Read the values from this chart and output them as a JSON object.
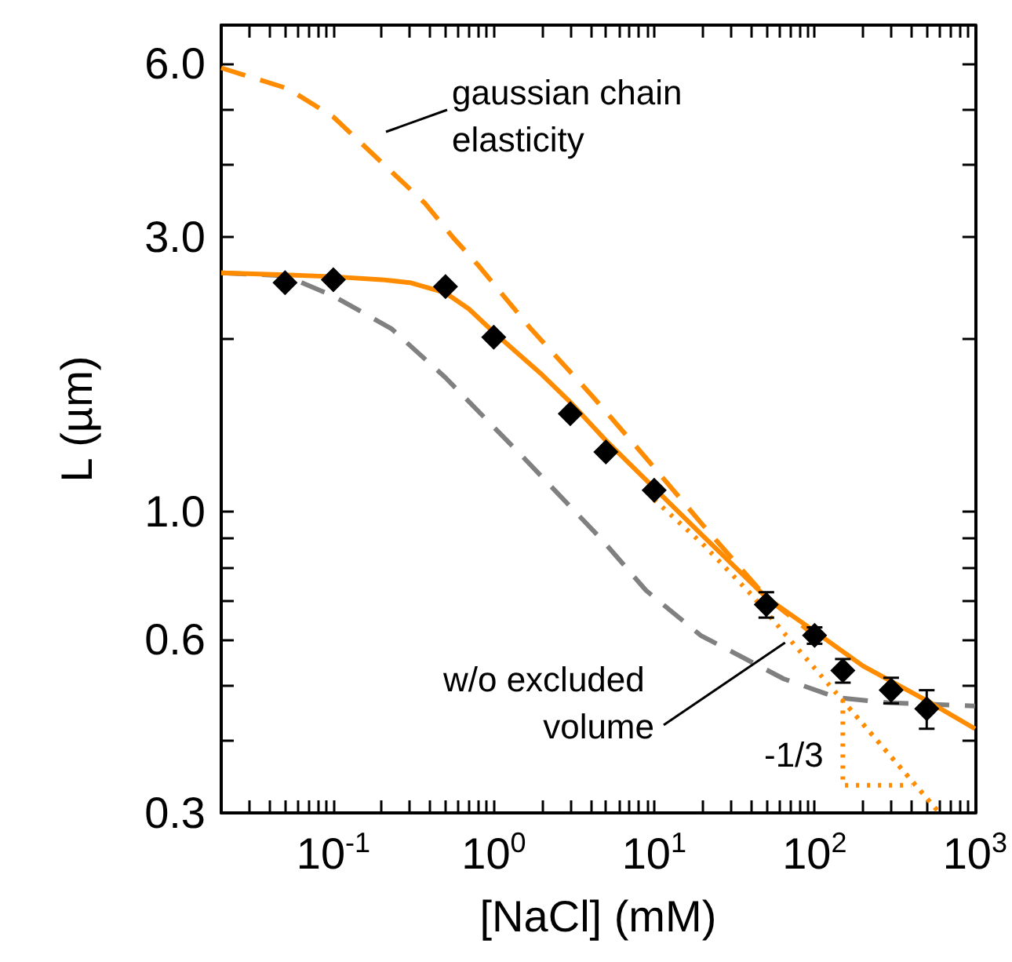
{
  "chart_data": {
    "type": "line",
    "xlabel": "[NaCl] (mM)",
    "ylabel": "L (µm)",
    "log": "xy",
    "xlim": [
      0.02,
      1000
    ],
    "ylim": [
      0.3,
      7
    ],
    "xticks": [
      {
        "value": 0.02,
        "label": null
      },
      {
        "value": 0.03,
        "label": null
      },
      {
        "value": 0.04,
        "label": null
      },
      {
        "value": 0.05,
        "label": null
      },
      {
        "value": 0.06,
        "label": null
      },
      {
        "value": 0.07,
        "label": null
      },
      {
        "value": 0.08,
        "label": null
      },
      {
        "value": 0.09,
        "label": null
      },
      {
        "value": 0.1,
        "label": "10$^{-1}$"
      },
      {
        "value": 0.2,
        "label": null
      },
      {
        "value": 0.3,
        "label": null
      },
      {
        "value": 0.4,
        "label": null
      },
      {
        "value": 0.5,
        "label": null
      },
      {
        "value": 0.6,
        "label": null
      },
      {
        "value": 0.7,
        "label": null
      },
      {
        "value": 0.8,
        "label": null
      },
      {
        "value": 0.9,
        "label": null
      },
      {
        "value": 1,
        "label": "10$^{0}$"
      },
      {
        "value": 2,
        "label": null
      },
      {
        "value": 3,
        "label": null
      },
      {
        "value": 4,
        "label": null
      },
      {
        "value": 5,
        "label": null
      },
      {
        "value": 6,
        "label": null
      },
      {
        "value": 7,
        "label": null
      },
      {
        "value": 8,
        "label": null
      },
      {
        "value": 9,
        "label": null
      },
      {
        "value": 10,
        "label": "10$^{1}$"
      },
      {
        "value": 20,
        "label": null
      },
      {
        "value": 30,
        "label": null
      },
      {
        "value": 40,
        "label": null
      },
      {
        "value": 50,
        "label": null
      },
      {
        "value": 60,
        "label": null
      },
      {
        "value": 70,
        "label": null
      },
      {
        "value": 80,
        "label": null
      },
      {
        "value": 90,
        "label": null
      },
      {
        "value": 100,
        "label": "10$^{2}$"
      },
      {
        "value": 200,
        "label": null
      },
      {
        "value": 300,
        "label": null
      },
      {
        "value": 400,
        "label": null
      },
      {
        "value": 500,
        "label": null
      },
      {
        "value": 600,
        "label": null
      },
      {
        "value": 700,
        "label": null
      },
      {
        "value": 800,
        "label": null
      },
      {
        "value": 900,
        "label": null
      },
      {
        "value": 1000,
        "label": "10$^{3}$"
      }
    ],
    "yticks": [
      0.3,
      {
        "value": 0.4,
        "label": null
      },
      {
        "value": 0.5,
        "label": null
      },
      0.6,
      {
        "value": 0.7,
        "label": null
      },
      {
        "value": 0.8,
        "label": null
      },
      {
        "value": 0.9,
        "label": null
      },
      {
        "value": 1,
        "label": "1.0"
      },
      {
        "value": 2,
        "label": null
      },
      {
        "value": 3,
        "label": "3.0"
      },
      {
        "value": 4,
        "label": null
      },
      {
        "value": 5,
        "label": null
      },
      {
        "value": 6,
        "label": "6.0"
      }
    ],
    "series": [
      {
        "color": "#ff8c00",
        "line_style": "dashed",
        "marker": "none",
        "x": [
          0.02,
          0.052,
          0.1,
          0.37,
          0.56,
          0.8,
          1.7,
          4.1,
          8.9,
          20,
          50,
          100
        ],
        "values": [
          5.9,
          5.43,
          4.85,
          3.44,
          2.99,
          2.68,
          2.08,
          1.59,
          1.24,
          0.95,
          0.71,
          0.61
        ]
      },
      {
        "color": "#808080",
        "line_style": "dashed",
        "marker": "none",
        "x": [
          0.02,
          0.05,
          0.1,
          0.23,
          0.5,
          1.5,
          4.8,
          8.9,
          19.5,
          64,
          137,
          290,
          1000
        ],
        "values": [
          2.6,
          2.57,
          2.37,
          2.08,
          1.71,
          1.25,
          0.89,
          0.73,
          0.61,
          0.513,
          0.476,
          0.466,
          0.46
        ]
      },
      {
        "color": "#ff8c00",
        "line_style": "dotted",
        "marker": "none",
        "x": [
          10,
          20,
          40,
          70,
          150,
          600,
          150,
          150,
          400
        ],
        "values": [
          1.05,
          0.88,
          0.72,
          0.6,
          0.47,
          0.3,
          0.47,
          0.335,
          0.335
        ]
      },
      {
        "color": "#ff8c00",
        "line_style": "solid",
        "marker": "none",
        "x": [
          0.02,
          0.05,
          0.1,
          0.2,
          0.3,
          0.5,
          0.7,
          1,
          2,
          3,
          5,
          10,
          20,
          50,
          100,
          200,
          500,
          1000
        ],
        "values": [
          2.6,
          2.58,
          2.56,
          2.53,
          2.5,
          2.4,
          2.25,
          2.05,
          1.73,
          1.55,
          1.33,
          1.1,
          0.91,
          0.71,
          0.62,
          0.54,
          0.47,
          0.42
        ]
      },
      {
        "type": "scatter",
        "color": "#000000",
        "marker": "diamond",
        "x": [
          0.05,
          0.1,
          0.5,
          1,
          3,
          5,
          10,
          50,
          100,
          150,
          300,
          500
        ],
        "values": [
          2.5,
          2.53,
          2.46,
          2.01,
          1.48,
          1.27,
          1.09,
          0.69,
          0.61,
          0.53,
          0.49,
          0.455
        ],
        "errors": [
          null,
          null,
          null,
          null,
          null,
          null,
          null,
          0.035,
          0.02,
          0.025,
          0.025,
          0.035
        ]
      }
    ],
    "annotations": [
      "gaussian chain elasticity",
      {
        "text": "w/o excluded volume",
        "x": 70,
        "y": 0.6
      },
      "-1/3"
    ]
  }
}
